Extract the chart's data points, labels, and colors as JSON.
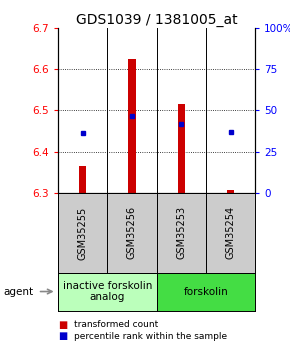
{
  "title": "GDS1039 / 1381005_at",
  "samples": [
    "GSM35255",
    "GSM35256",
    "GSM35253",
    "GSM35254"
  ],
  "bar_bottoms": [
    6.3,
    6.3,
    6.3,
    6.3
  ],
  "bar_tops": [
    6.365,
    6.625,
    6.515,
    6.308
  ],
  "percentile_values": [
    6.445,
    6.487,
    6.468,
    6.447
  ],
  "ylim": [
    6.3,
    6.7
  ],
  "yticks_left": [
    6.3,
    6.4,
    6.5,
    6.6,
    6.7
  ],
  "yticks_right": [
    0,
    25,
    50,
    75,
    100
  ],
  "ytick_labels_right": [
    "0",
    "25",
    "50",
    "75",
    "100%"
  ],
  "bar_color": "#cc0000",
  "percentile_color": "#0000cc",
  "group1_label": "inactive forskolin\nanalog",
  "group2_label": "forskolin",
  "group1_bg": "#bbffbb",
  "group2_bg": "#44dd44",
  "sample_bg": "#cccccc",
  "agent_label": "agent",
  "legend_bar_label": "transformed count",
  "legend_pct_label": "percentile rank within the sample",
  "title_fontsize": 10,
  "tick_fontsize": 7.5,
  "sample_fontsize": 7,
  "group_fontsize": 7.5
}
